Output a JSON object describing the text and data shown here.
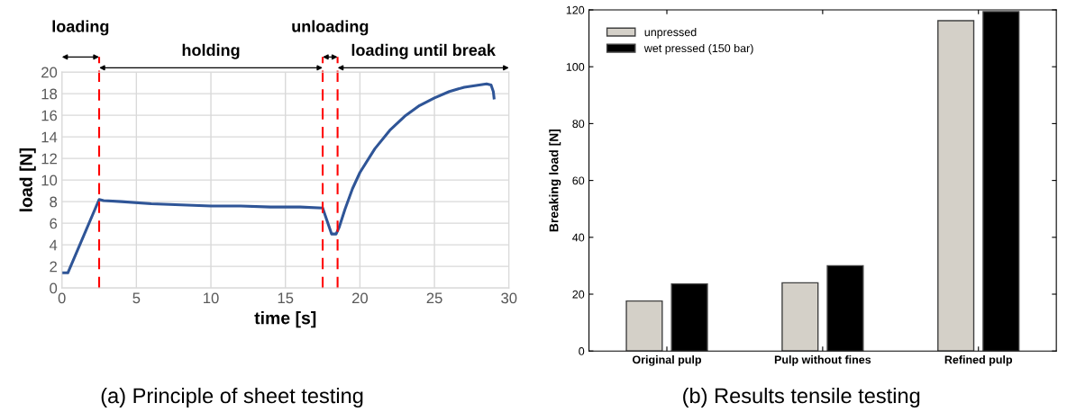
{
  "chart_data": [
    {
      "type": "line",
      "title": "(a) Principle of sheet testing",
      "xlabel": "time [s]",
      "ylabel": "load [N]",
      "x": [
        0,
        0.4,
        2.5,
        2.8,
        4,
        6,
        8,
        10,
        12,
        14,
        16,
        17.5,
        18.1,
        18.4,
        18.6,
        19,
        19.5,
        20,
        21,
        22,
        23,
        24,
        25,
        26,
        27,
        28,
        28.5,
        28.8,
        28.95,
        29
      ],
      "series": [
        {
          "color": "#2f5597",
          "values": [
            1.4,
            1.4,
            8.2,
            8.1,
            8.0,
            7.8,
            7.7,
            7.6,
            7.6,
            7.5,
            7.5,
            7.4,
            5.0,
            5.0,
            5.6,
            7.3,
            9.2,
            10.7,
            12.9,
            14.6,
            15.9,
            16.9,
            17.6,
            18.2,
            18.6,
            18.8,
            18.9,
            18.8,
            18.2,
            17.6
          ]
        }
      ],
      "xlim": [
        0,
        30
      ],
      "ylim": [
        0,
        20
      ],
      "xticks": [
        0,
        5,
        10,
        15,
        20,
        25,
        30
      ],
      "yticks": [
        0,
        2,
        4,
        6,
        8,
        10,
        12,
        14,
        16,
        18,
        20
      ],
      "grid": true,
      "ref_lines": [
        {
          "axis": "x",
          "value": 2.5,
          "color": "#ff0000",
          "line_style": "dashed"
        },
        {
          "axis": "x",
          "value": 17.5,
          "color": "#ff0000",
          "line_style": "dashed"
        },
        {
          "axis": "x",
          "value": 18.5,
          "color": "#ff0000",
          "line_style": "dashed"
        }
      ],
      "annotations": [
        "loading",
        "holding",
        "unloading",
        "loading until break"
      ]
    },
    {
      "type": "bar",
      "title": "(b) Results tensile testing",
      "ylabel": "Breaking load [N]",
      "categories": [
        "Original pulp",
        "Pulp without fines",
        "Refined pulp"
      ],
      "series": [
        {
          "name": "unpressed",
          "color": "#d4d0c8",
          "values": [
            17.6,
            24.0,
            116.2
          ]
        },
        {
          "name": "wet pressed (150 bar)",
          "color": "#000000",
          "values": [
            23.6,
            30.0,
            119.4
          ]
        }
      ],
      "ylim": [
        0,
        120
      ],
      "yticks": [
        0,
        20,
        40,
        60,
        80,
        100,
        120
      ],
      "legend": "top left",
      "grid": false
    }
  ]
}
